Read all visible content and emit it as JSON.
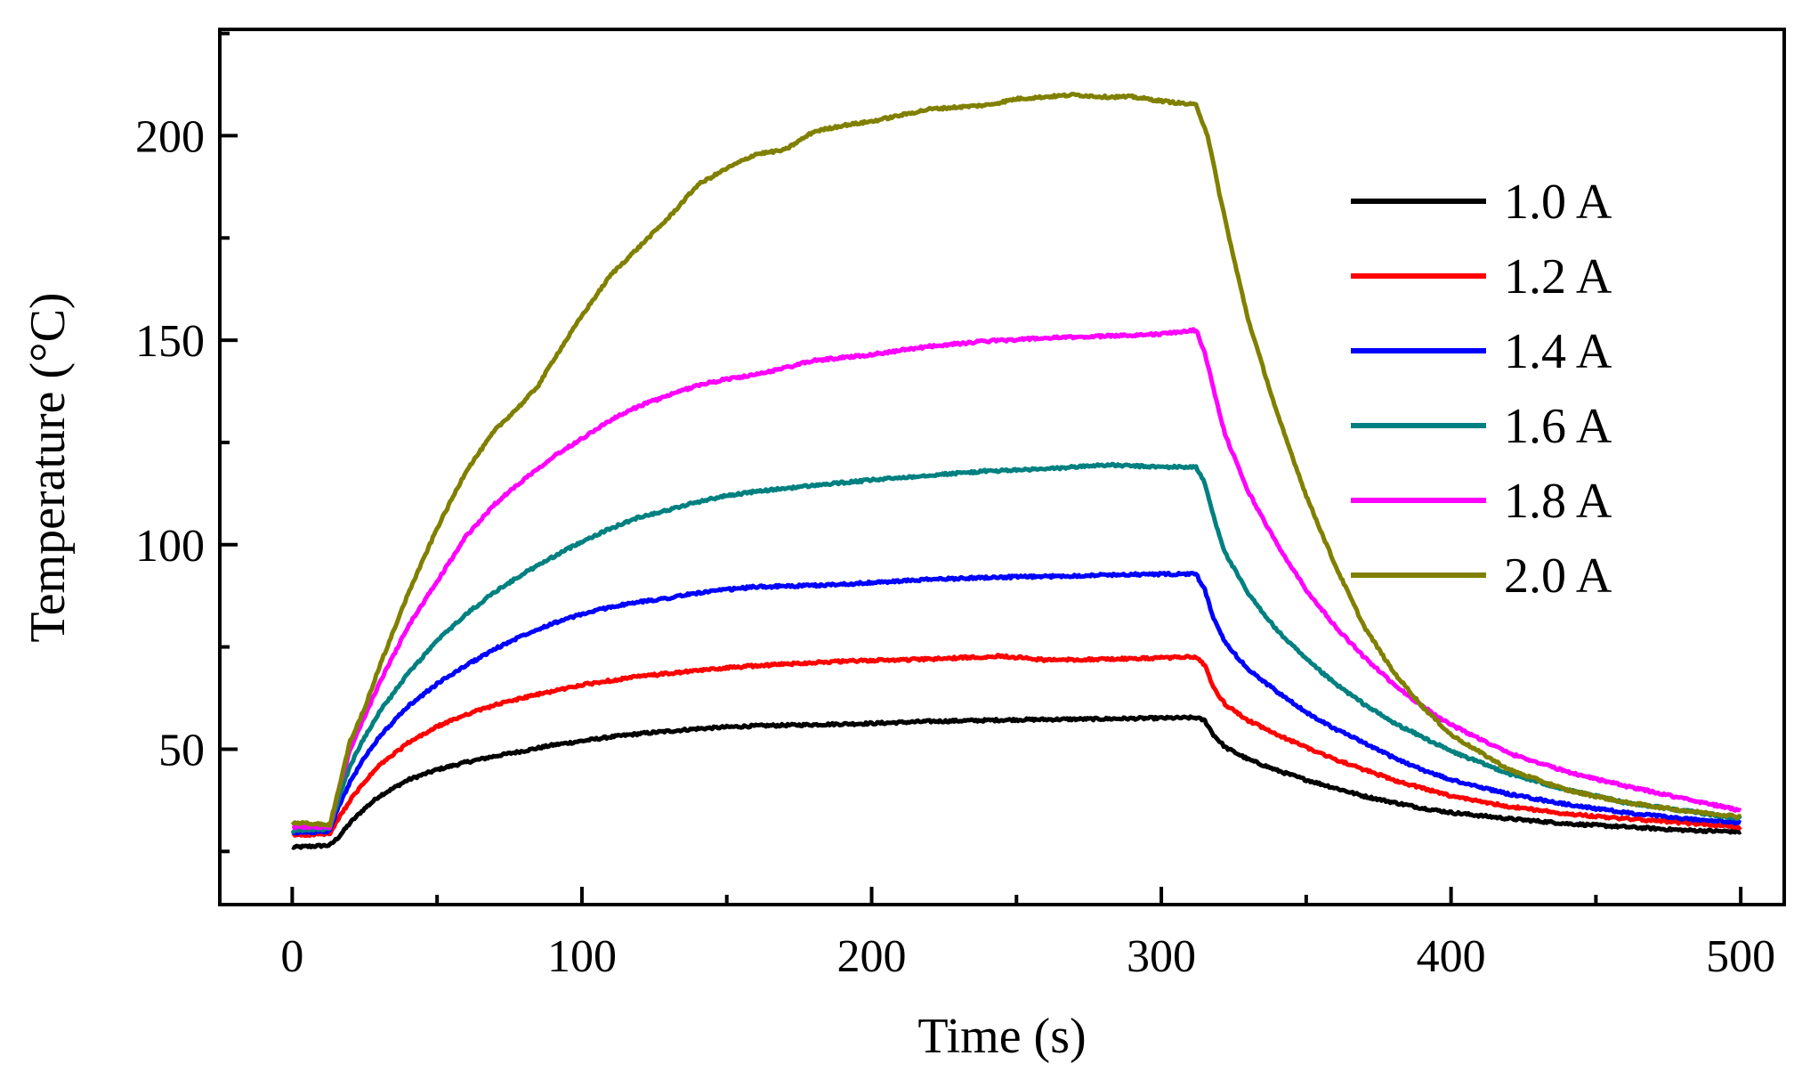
{
  "chart_data": {
    "type": "line",
    "xlabel": "Time (s)",
    "ylabel": "Temperature (°C)",
    "xlim": [
      -25,
      515
    ],
    "ylim": [
      12,
      226
    ],
    "x_ticks": [
      0,
      100,
      200,
      300,
      400,
      500
    ],
    "y_ticks": [
      50,
      100,
      150,
      200
    ],
    "x_tick_labels": [
      "0",
      "100",
      "200",
      "300",
      "400",
      "500"
    ],
    "y_tick_labels": [
      "50",
      "100",
      "150",
      "200"
    ],
    "grid": false,
    "legend_position": "right",
    "series": [
      {
        "name": "1.0 A",
        "color": "#000000",
        "points": [
          [
            0,
            26
          ],
          [
            13,
            26.5
          ],
          [
            16,
            28.5
          ],
          [
            20,
            32
          ],
          [
            25,
            35.5
          ],
          [
            30,
            38.5
          ],
          [
            40,
            42.5
          ],
          [
            50,
            45
          ],
          [
            60,
            46.8
          ],
          [
            70,
            48.3
          ],
          [
            80,
            49.6
          ],
          [
            90,
            51
          ],
          [
            100,
            52
          ],
          [
            110,
            53
          ],
          [
            120,
            53.8
          ],
          [
            130,
            54.4
          ],
          [
            140,
            55
          ],
          [
            150,
            55.4
          ],
          [
            160,
            55.7
          ],
          [
            180,
            56
          ],
          [
            200,
            56.3
          ],
          [
            220,
            56.8
          ],
          [
            250,
            57.2
          ],
          [
            280,
            57.4
          ],
          [
            300,
            57.6
          ],
          [
            312,
            57.7
          ],
          [
            315,
            57
          ],
          [
            318,
            53.5
          ],
          [
            322,
            50.5
          ],
          [
            330,
            47.5
          ],
          [
            340,
            44.8
          ],
          [
            350,
            42.5
          ],
          [
            360,
            40.5
          ],
          [
            370,
            38.5
          ],
          [
            380,
            37
          ],
          [
            390,
            35.6
          ],
          [
            400,
            34.5
          ],
          [
            420,
            33
          ],
          [
            440,
            31.8
          ],
          [
            460,
            31
          ],
          [
            480,
            30.2
          ],
          [
            500,
            29.8
          ]
        ]
      },
      {
        "name": "1.2 A",
        "color": "#ff0000",
        "points": [
          [
            0,
            29
          ],
          [
            13,
            29.3
          ],
          [
            16,
            33
          ],
          [
            20,
            37.5
          ],
          [
            25,
            42
          ],
          [
            30,
            46
          ],
          [
            40,
            51.5
          ],
          [
            50,
            55.5
          ],
          [
            60,
            58.5
          ],
          [
            70,
            60.8
          ],
          [
            80,
            62.6
          ],
          [
            90,
            64.2
          ],
          [
            100,
            65.7
          ],
          [
            110,
            66.8
          ],
          [
            120,
            67.8
          ],
          [
            130,
            68.5
          ],
          [
            140,
            69.2
          ],
          [
            150,
            69.9
          ],
          [
            160,
            70.4
          ],
          [
            180,
            71.2
          ],
          [
            200,
            71.7
          ],
          [
            220,
            72
          ],
          [
            245,
            72.8
          ],
          [
            260,
            71.8
          ],
          [
            280,
            72
          ],
          [
            300,
            72.3
          ],
          [
            312,
            72.6
          ],
          [
            315,
            70.5
          ],
          [
            318,
            65
          ],
          [
            322,
            61
          ],
          [
            330,
            57
          ],
          [
            340,
            53.5
          ],
          [
            350,
            50.5
          ],
          [
            360,
            47.5
          ],
          [
            370,
            45
          ],
          [
            380,
            42.5
          ],
          [
            390,
            40.5
          ],
          [
            400,
            38.5
          ],
          [
            420,
            36
          ],
          [
            440,
            34.2
          ],
          [
            460,
            33
          ],
          [
            480,
            32
          ],
          [
            500,
            31
          ]
        ]
      },
      {
        "name": "1.4 A",
        "color": "#0000ff",
        "points": [
          [
            0,
            29.5
          ],
          [
            13,
            30
          ],
          [
            16,
            36
          ],
          [
            20,
            42
          ],
          [
            25,
            48
          ],
          [
            30,
            53
          ],
          [
            40,
            60.5
          ],
          [
            50,
            66
          ],
          [
            60,
            70.5
          ],
          [
            70,
            74.5
          ],
          [
            80,
            78
          ],
          [
            90,
            80.8
          ],
          [
            100,
            83
          ],
          [
            110,
            84.8
          ],
          [
            120,
            86
          ],
          [
            130,
            87
          ],
          [
            140,
            88.2
          ],
          [
            150,
            89
          ],
          [
            160,
            89.7
          ],
          [
            180,
            90
          ],
          [
            200,
            90.7
          ],
          [
            220,
            91.5
          ],
          [
            240,
            92
          ],
          [
            260,
            92.2
          ],
          [
            280,
            92.6
          ],
          [
            300,
            92.8
          ],
          [
            312,
            92.8
          ],
          [
            315,
            89
          ],
          [
            318,
            82
          ],
          [
            322,
            76
          ],
          [
            330,
            69.5
          ],
          [
            340,
            64
          ],
          [
            350,
            59
          ],
          [
            360,
            55
          ],
          [
            370,
            51.5
          ],
          [
            380,
            48
          ],
          [
            390,
            45
          ],
          [
            400,
            42.5
          ],
          [
            420,
            39
          ],
          [
            440,
            36.5
          ],
          [
            460,
            34.5
          ],
          [
            480,
            33
          ],
          [
            500,
            32
          ]
        ]
      },
      {
        "name": "1.6 A",
        "color": "#008080",
        "points": [
          [
            0,
            30
          ],
          [
            13,
            30.5
          ],
          [
            16,
            38
          ],
          [
            20,
            46
          ],
          [
            25,
            53
          ],
          [
            30,
            59
          ],
          [
            40,
            68.5
          ],
          [
            50,
            76.5
          ],
          [
            60,
            83
          ],
          [
            70,
            88.5
          ],
          [
            80,
            93
          ],
          [
            90,
            97
          ],
          [
            100,
            100.8
          ],
          [
            110,
            104
          ],
          [
            120,
            106.8
          ],
          [
            130,
            108.5
          ],
          [
            140,
            110.5
          ],
          [
            150,
            112
          ],
          [
            160,
            113
          ],
          [
            180,
            114.5
          ],
          [
            200,
            115.8
          ],
          [
            220,
            117
          ],
          [
            240,
            118
          ],
          [
            260,
            118.5
          ],
          [
            280,
            119.5
          ],
          [
            300,
            119
          ],
          [
            312,
            119
          ],
          [
            315,
            115
          ],
          [
            318,
            107
          ],
          [
            322,
            98
          ],
          [
            330,
            88
          ],
          [
            340,
            79
          ],
          [
            350,
            72
          ],
          [
            360,
            66
          ],
          [
            370,
            61
          ],
          [
            380,
            56.5
          ],
          [
            390,
            53
          ],
          [
            400,
            49.5
          ],
          [
            420,
            44
          ],
          [
            440,
            40
          ],
          [
            460,
            37
          ],
          [
            480,
            35
          ],
          [
            500,
            33
          ]
        ]
      },
      {
        "name": "1.8 A",
        "color": "#ff00ff",
        "points": [
          [
            0,
            31
          ],
          [
            13,
            31
          ],
          [
            16,
            40
          ],
          [
            20,
            50
          ],
          [
            25,
            58
          ],
          [
            30,
            66
          ],
          [
            40,
            80
          ],
          [
            50,
            91
          ],
          [
            60,
            102
          ],
          [
            70,
            110
          ],
          [
            80,
            116
          ],
          [
            90,
            121.5
          ],
          [
            100,
            126
          ],
          [
            110,
            130.5
          ],
          [
            120,
            134
          ],
          [
            130,
            136.5
          ],
          [
            140,
            139
          ],
          [
            150,
            140.5
          ],
          [
            160,
            141.5
          ],
          [
            180,
            145
          ],
          [
            200,
            146.5
          ],
          [
            220,
            148.5
          ],
          [
            240,
            149.8
          ],
          [
            260,
            150.5
          ],
          [
            280,
            151
          ],
          [
            300,
            151.5
          ],
          [
            312,
            152.5
          ],
          [
            315,
            147
          ],
          [
            318,
            138
          ],
          [
            322,
            127
          ],
          [
            330,
            113
          ],
          [
            340,
            100
          ],
          [
            350,
            89
          ],
          [
            360,
            80
          ],
          [
            370,
            72.5
          ],
          [
            380,
            66
          ],
          [
            390,
            60.5
          ],
          [
            400,
            56
          ],
          [
            420,
            49
          ],
          [
            440,
            44.5
          ],
          [
            460,
            41
          ],
          [
            480,
            38
          ],
          [
            500,
            35
          ]
        ]
      },
      {
        "name": "2.0 A",
        "color": "#808000",
        "points": [
          [
            0,
            32
          ],
          [
            13,
            31.5
          ],
          [
            16,
            40
          ],
          [
            20,
            52
          ],
          [
            25,
            60
          ],
          [
            30,
            70
          ],
          [
            40,
            88
          ],
          [
            50,
            104
          ],
          [
            60,
            118
          ],
          [
            70,
            128
          ],
          [
            80,
            135
          ],
          [
            85,
            139
          ],
          [
            90,
            145
          ],
          [
            100,
            156
          ],
          [
            110,
            166
          ],
          [
            120,
            173
          ],
          [
            130,
            180
          ],
          [
            140,
            188
          ],
          [
            150,
            192
          ],
          [
            160,
            195.5
          ],
          [
            170,
            196.5
          ],
          [
            180,
            201
          ],
          [
            190,
            202.5
          ],
          [
            200,
            203.5
          ],
          [
            220,
            206.5
          ],
          [
            240,
            207.5
          ],
          [
            250,
            209
          ],
          [
            260,
            209.5
          ],
          [
            270,
            210
          ],
          [
            280,
            209.5
          ],
          [
            290,
            209.5
          ],
          [
            300,
            208.5
          ],
          [
            312,
            207.5
          ],
          [
            316,
            200
          ],
          [
            320,
            186
          ],
          [
            325,
            170
          ],
          [
            330,
            155
          ],
          [
            340,
            132
          ],
          [
            350,
            112
          ],
          [
            360,
            95
          ],
          [
            370,
            80
          ],
          [
            380,
            69
          ],
          [
            390,
            60.5
          ],
          [
            400,
            53.5
          ],
          [
            420,
            45
          ],
          [
            440,
            40
          ],
          [
            460,
            37
          ],
          [
            480,
            35
          ],
          [
            500,
            33.5
          ]
        ]
      }
    ]
  }
}
